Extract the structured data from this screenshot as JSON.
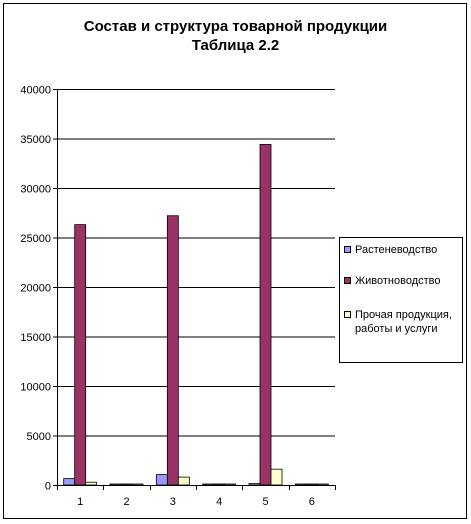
{
  "chart_data": {
    "type": "bar",
    "title": "Состав и структура товарной продукции",
    "subtitle": "Таблица 2.2",
    "categories": [
      "1",
      "2",
      "3",
      "4",
      "5",
      "6"
    ],
    "ylim": [
      0,
      40000
    ],
    "yticks": [
      0,
      5000,
      10000,
      15000,
      20000,
      25000,
      30000,
      35000,
      40000
    ],
    "grid": true,
    "legend_position": "right",
    "series": [
      {
        "name": "Растеневодство",
        "color": "#9999ff",
        "values": [
          650,
          0,
          1050,
          0,
          150,
          0
        ]
      },
      {
        "name": "Животноводство",
        "color": "#993366",
        "values": [
          26300,
          0,
          27200,
          0,
          34400,
          0
        ]
      },
      {
        "name": "Прочая продукция, работы и услуги",
        "color": "#ffffcc",
        "values": [
          280,
          0,
          800,
          0,
          1600,
          0
        ]
      }
    ]
  },
  "legend": {
    "items": [
      {
        "label": "Растеневодство"
      },
      {
        "label": "Животноводство"
      },
      {
        "label": "Прочая продукция, работы и услуги"
      }
    ]
  }
}
